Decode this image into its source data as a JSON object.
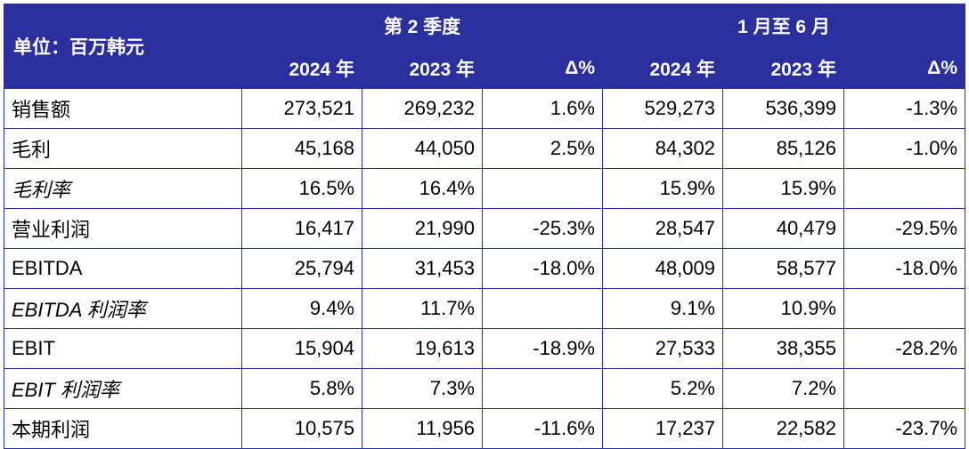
{
  "header": {
    "unit_label": "单位：百万韩元",
    "groups": [
      "第 2 季度",
      "1 月至 6 月"
    ],
    "columns": [
      "2024 年",
      "2023 年",
      "Δ%",
      "2024 年",
      "2023 年",
      "Δ%"
    ]
  },
  "rows": [
    {
      "label": "销售额",
      "italic": false,
      "cells": [
        "273,521",
        "269,232",
        "1.6%",
        "529,273",
        "536,399",
        "-1.3%"
      ]
    },
    {
      "label": "毛利",
      "italic": false,
      "cells": [
        "45,168",
        "44,050",
        "2.5%",
        "84,302",
        "85,126",
        "-1.0%"
      ]
    },
    {
      "label": "毛利率",
      "italic": true,
      "cells": [
        "16.5%",
        "16.4%",
        "",
        "15.9%",
        "15.9%",
        ""
      ]
    },
    {
      "label": "营业利润",
      "italic": false,
      "cells": [
        "16,417",
        "21,990",
        "-25.3%",
        "28,547",
        "40,479",
        "-29.5%"
      ]
    },
    {
      "label": "EBITDA",
      "italic": false,
      "cells": [
        "25,794",
        "31,453",
        "-18.0%",
        "48,009",
        "58,577",
        "-18.0%"
      ]
    },
    {
      "label": "EBITDA 利润率",
      "italic": true,
      "cells": [
        "9.4%",
        "11.7%",
        "",
        "9.1%",
        "10.9%",
        ""
      ]
    },
    {
      "label": "EBIT",
      "italic": false,
      "cells": [
        "15,904",
        "19,613",
        "-18.9%",
        "27,533",
        "38,355",
        "-28.2%"
      ]
    },
    {
      "label": "EBIT 利润率",
      "italic": true,
      "cells": [
        "5.8%",
        "7.3%",
        "",
        "5.2%",
        "7.2%",
        ""
      ]
    },
    {
      "label": "本期利润",
      "italic": false,
      "cells": [
        "10,575",
        "11,956",
        "-11.6%",
        "17,237",
        "22,582",
        "-23.7%"
      ]
    }
  ],
  "colors": {
    "header_bg": "#2b2f9e",
    "header_text": "#ffffff",
    "border": "#2b2f9e"
  }
}
